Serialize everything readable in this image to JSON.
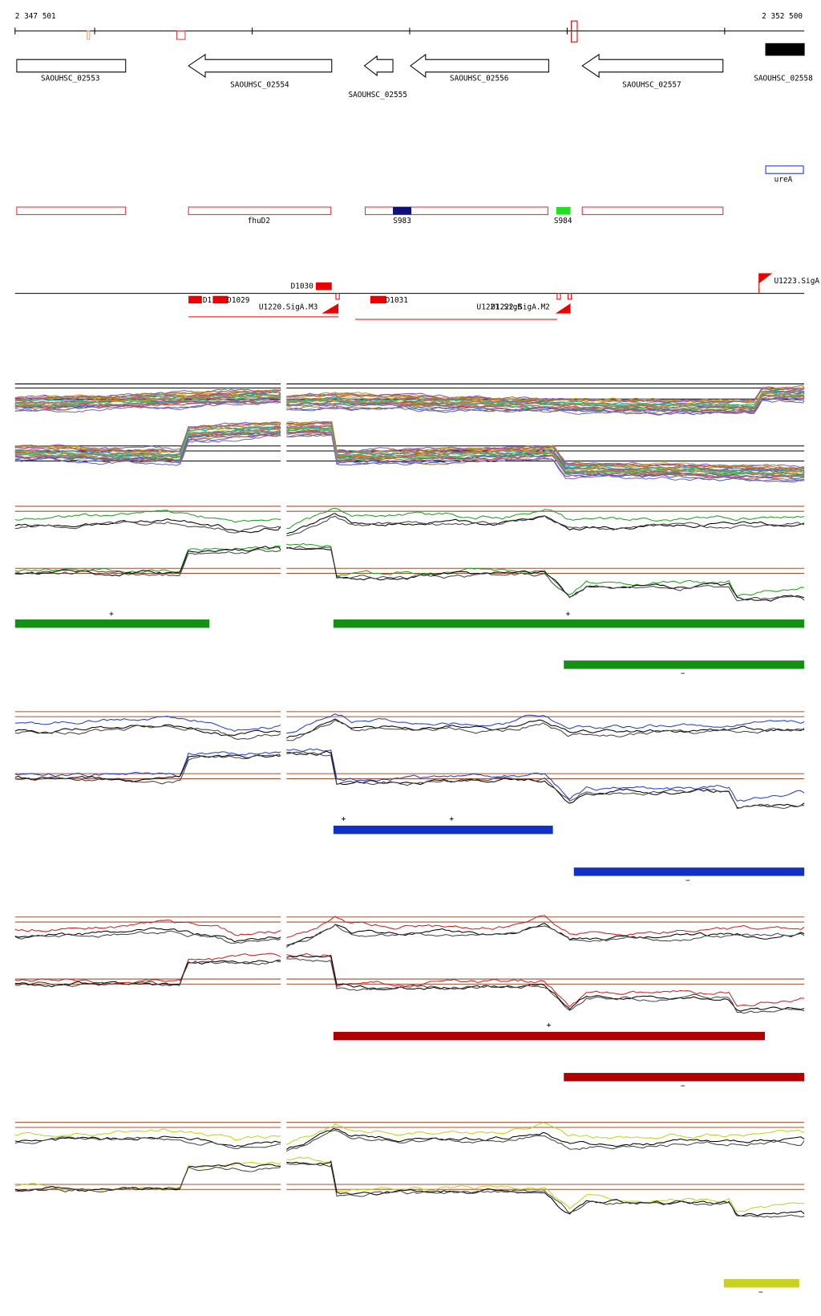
{
  "ruler": {
    "start": "2 347 501",
    "end": "2 352 500"
  },
  "genes": [
    "SAOUHSC_02553",
    "SAOUHSC_02554",
    "SAOUHSC_02555",
    "SAOUHSC_02556",
    "SAOUHSC_02557",
    "SAOUHSC_02558"
  ],
  "features": [
    "ureA",
    "fhuD2",
    "S983",
    "S984"
  ],
  "promoters": [
    "D1030",
    "D1",
    "D1029",
    "U1220.SigA.M3",
    "D1031",
    "U1221.SigB",
    "U1222.SigA.M2",
    "U1223.SigA"
  ],
  "strand_marks": [
    "+",
    "+",
    "−",
    "+",
    "+",
    "−",
    "+",
    "−",
    "−"
  ]
}
